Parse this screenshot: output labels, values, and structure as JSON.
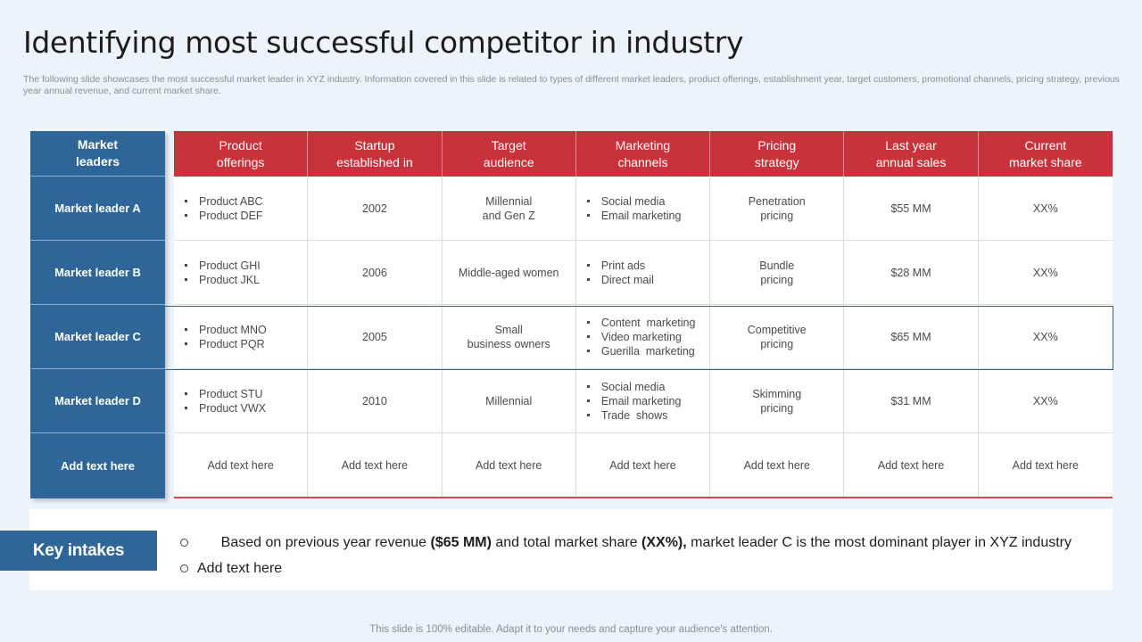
{
  "title": "Identifying most successful competitor in industry",
  "subtitle": "The following slide showcases the most successful market leader in XYZ industry. Information covered in this slide is related to types of different market leaders, product offerings, establishment year, target customers, promotional channels, pricing strategy, previous year annual revenue, and current market share.",
  "table": {
    "leaders_header": "Market\nleaders",
    "columns": [
      "Product\nofferings",
      "Startup\nestablished in",
      "Target\naudience",
      "Marketing\nchannels",
      "Pricing\nstrategy",
      "Last year\nannual sales",
      "Current\nmarket share"
    ],
    "rows": [
      {
        "leader": "Market leader A",
        "products": [
          "Product ABC",
          "Product DEF"
        ],
        "established": "2002",
        "audience": "Millennial\nand Gen Z",
        "channels": [
          "Social media",
          "Email marketing"
        ],
        "pricing": "Penetration\npricing",
        "sales": "$55 MM",
        "share": "XX%"
      },
      {
        "leader": "Market leader B",
        "products": [
          "Product GHI",
          "Product JKL"
        ],
        "established": "2006",
        "audience": "Middle-aged  women",
        "channels": [
          "Print ads",
          "Direct mail"
        ],
        "pricing": "Bundle\npricing",
        "sales": "$28 MM",
        "share": "XX%"
      },
      {
        "leader": "Market leader C",
        "products": [
          "Product MNO",
          "Product PQR"
        ],
        "established": "2005",
        "audience": "Small\nbusiness owners",
        "channels": [
          "Content  marketing",
          "Video marketing",
          "Guerilla  marketing"
        ],
        "pricing": "Competitive\npricing",
        "sales": "$65 MM",
        "share": "XX%"
      },
      {
        "leader": "Market leader D",
        "products": [
          "Product STU",
          "Product VWX"
        ],
        "established": "2010",
        "audience": "Millennial",
        "channels": [
          "Social media",
          "Email marketing",
          "Trade  shows"
        ],
        "pricing": "Skimming\npricing",
        "sales": "$31 MM",
        "share": "XX%"
      }
    ],
    "placeholder_leader": "Add text here",
    "placeholder_cell": "Add text here"
  },
  "key_intakes": {
    "label": "Key intakes",
    "point1_a": "Based on previous year revenue ",
    "point1_b": "($65 MM)",
    "point1_c": " and total market share ",
    "point1_d": "(XX%),",
    "point1_e": " market leader C is the most dominant player in XYZ industry",
    "point2": "Add text here"
  },
  "footer": "This slide is 100% editable. Adapt it to your needs and capture your audience's attention.",
  "colors": {
    "leader_blue": "#2e6699",
    "header_red": "#c9323b",
    "background": "#edf3fa"
  }
}
